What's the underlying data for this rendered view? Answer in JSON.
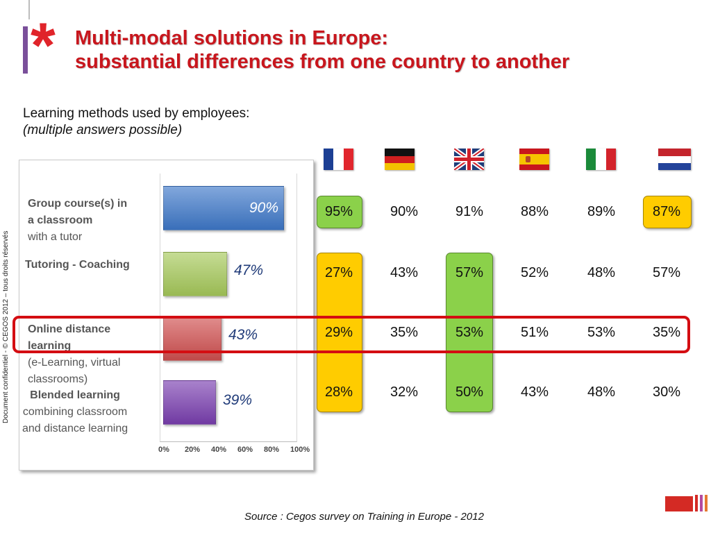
{
  "header": {
    "title_line1": "Multi-modal solutions in Europe:",
    "title_line2": "substantial differences from one country to another"
  },
  "subtitle": {
    "line1": "Learning methods used by employees:",
    "line2": "(multiple answers possible)"
  },
  "side_note": "Document confidentiel - © CEGOS 2012 – tous droits réservés",
  "source": "Source : Cegos survey  on Training in Europe - 2012",
  "colors": {
    "title": "#c8161d",
    "highlight_green": "#8bd14a",
    "highlight_yellow": "#ffcc00",
    "frame_red": "#d40d12"
  },
  "chart_data": {
    "type": "bar",
    "orientation": "horizontal",
    "categories": [
      "Group course(s) in a classroom with a tutor",
      "Tutoring - Coaching",
      "Online distance learning (e-Learning, virtual classrooms)",
      "Blended learning combining classroom and distance learning"
    ],
    "values": [
      90,
      47,
      43,
      39
    ],
    "value_labels": [
      "90%",
      "47%",
      "43%",
      "39%"
    ],
    "bar_colors": [
      "#3e78c9",
      "#a6c95a",
      "#d05050",
      "#7a3fb0"
    ],
    "xlim": [
      0,
      100
    ],
    "ticks": [
      "0%",
      "20%",
      "40%",
      "60%",
      "80%",
      "100%"
    ]
  },
  "categories_text": [
    {
      "bold": "Group course(s) in",
      "bold2": "a classroom",
      "rest": "with a tutor"
    },
    {
      "bold": "Tutoring - Coaching"
    },
    {
      "bold": "Online distance",
      "bold2": "learning",
      "rest": "(e-Learning, virtual",
      "rest2": "classrooms)"
    },
    {
      "bold": "Blended learning",
      "rest": "combining classroom",
      "rest2": "and distance learning"
    }
  ],
  "countries": [
    {
      "flag": "france-flag-icon",
      "values": [
        "95%",
        "27%",
        "29%",
        "28%"
      ]
    },
    {
      "flag": "germany-flag-icon",
      "values": [
        "90%",
        "43%",
        "35%",
        "32%"
      ]
    },
    {
      "flag": "uk-flag-icon",
      "values": [
        "91%",
        "57%",
        "53%",
        "50%"
      ]
    },
    {
      "flag": "spain-flag-icon",
      "values": [
        "88%",
        "52%",
        "51%",
        "43%"
      ]
    },
    {
      "flag": "italy-flag-icon",
      "values": [
        "89%",
        "48%",
        "53%",
        "48%"
      ]
    },
    {
      "flag": "netherlands-flag-icon",
      "values": [
        "87%",
        "57%",
        "35%",
        "30%"
      ]
    }
  ]
}
